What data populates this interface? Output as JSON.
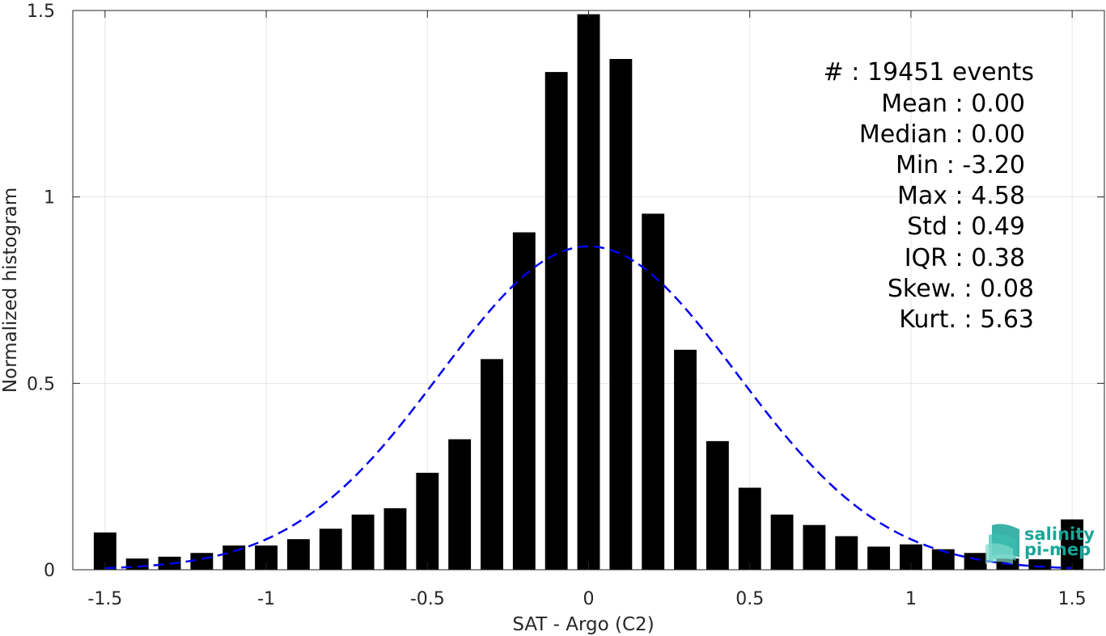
{
  "chart_data": {
    "type": "bar",
    "xlabel": "SAT - Argo (C2)",
    "ylabel": "Normalized histogram",
    "xlim": [
      -1.6,
      1.6
    ],
    "ylim": [
      0,
      1.5
    ],
    "xticks": [
      -1.5,
      -1,
      -0.5,
      0,
      0.5,
      1,
      1.5
    ],
    "xtick_labels": [
      "-1.5",
      "-1",
      "-0.5",
      "0",
      "0.5",
      "1",
      "1.5"
    ],
    "yticks": [
      0,
      0.5,
      1,
      1.5
    ],
    "ytick_labels": [
      "0",
      "0.5",
      "1",
      "1.5"
    ],
    "grid": true,
    "bin_width": 0.07,
    "x": [
      -1.5,
      -1.4,
      -1.3,
      -1.2,
      -1.1,
      -1.0,
      -0.9,
      -0.8,
      -0.7,
      -0.6,
      -0.5,
      -0.4,
      -0.3,
      -0.2,
      -0.1,
      0.0,
      0.1,
      0.2,
      0.3,
      0.4,
      0.5,
      0.6,
      0.7,
      0.8,
      0.9,
      1.0,
      1.1,
      1.2,
      1.3,
      1.4,
      1.5
    ],
    "values": [
      0.1,
      0.03,
      0.035,
      0.045,
      0.065,
      0.065,
      0.082,
      0.11,
      0.148,
      0.165,
      0.26,
      0.35,
      0.565,
      0.905,
      1.335,
      1.49,
      1.37,
      0.955,
      0.59,
      0.345,
      0.22,
      0.148,
      0.12,
      0.09,
      0.062,
      0.068,
      0.055,
      0.045,
      0.03,
      0.028,
      0.135
    ],
    "fit": {
      "type": "normal",
      "mean": 0.0,
      "std": 0.46,
      "color": "#0000ee",
      "style": "dashed"
    },
    "bar_color": "#000000"
  },
  "stats": {
    "lines": [
      "#  : 19451 events",
      "Mean : 0.00",
      "Median : 0.00",
      "Min : -3.20",
      "Max : 4.58",
      "Std : 0.49",
      "IQR : 0.38",
      "Skew. : 0.08",
      "Kurt. : 5.63"
    ]
  },
  "logo": {
    "line1": "salinity",
    "line2": "pi-mep",
    "color": "#1aa598"
  }
}
